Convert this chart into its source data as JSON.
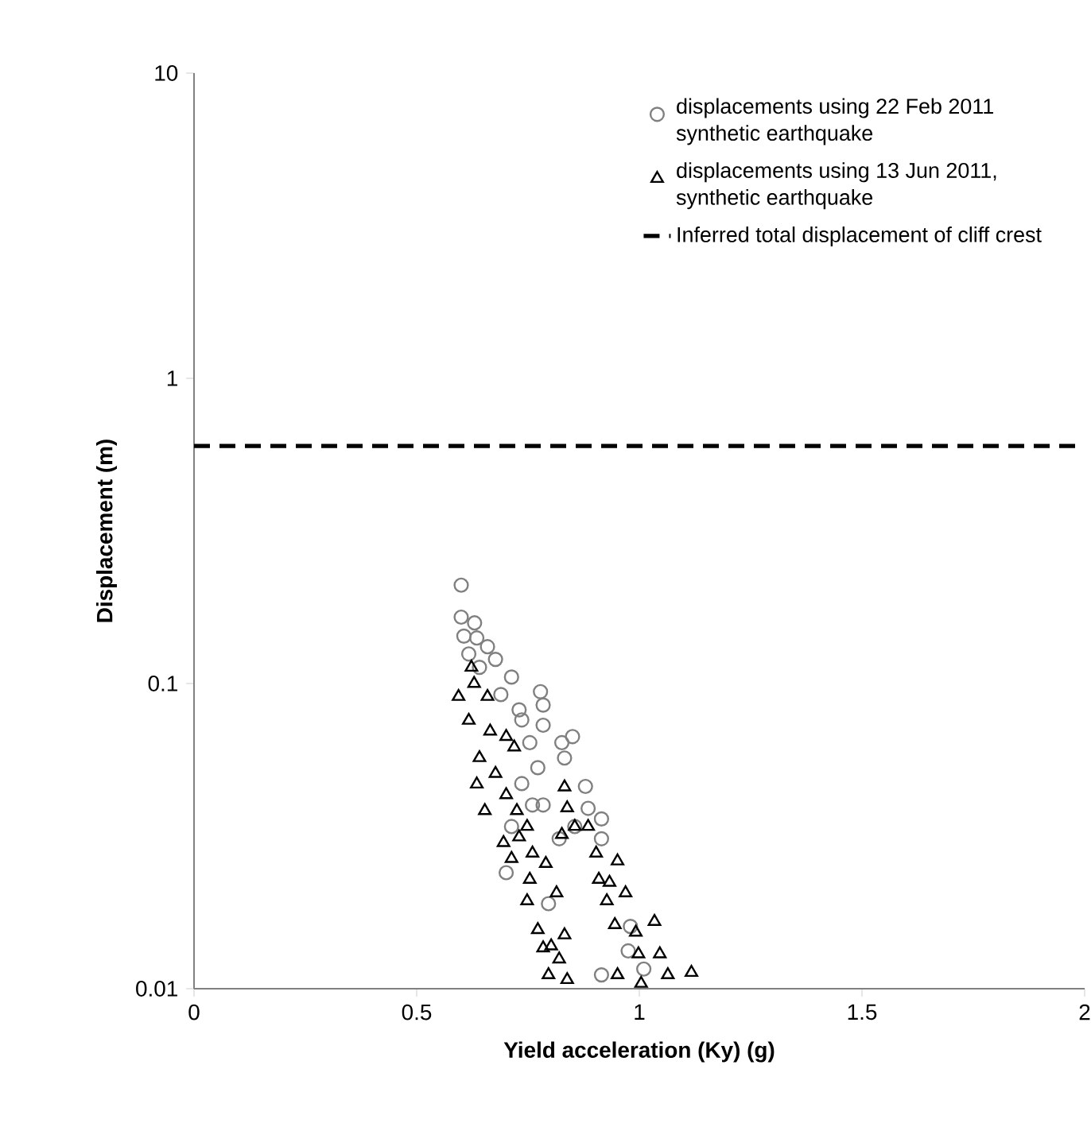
{
  "chart_data": {
    "type": "scatter",
    "xlabel": "Yield acceleration (Ky) (g)",
    "ylabel": "Displacement (m)",
    "xlim": [
      0,
      2
    ],
    "xticks": [
      0,
      0.5,
      1,
      1.5,
      2
    ],
    "ylim": [
      0.01,
      10
    ],
    "yticks": [
      0.01,
      0.1,
      1,
      10
    ],
    "log": "y",
    "legend": "top right",
    "series": [
      {
        "name": "displacements using 22 Feb 2011 synthetic earthquake",
        "color": "#808080",
        "marker": "circle",
        "x": [
          0.6,
          0.6,
          0.63,
          0.606,
          0.659,
          0.617,
          0.677,
          0.713,
          0.641,
          0.778,
          0.784,
          0.736,
          0.784,
          0.85,
          0.826,
          0.754,
          0.832,
          0.772,
          0.736,
          0.879,
          0.784,
          0.885,
          0.915,
          0.855,
          0.915,
          0.713,
          0.701,
          0.796,
          0.98,
          0.975,
          0.915,
          1.01,
          0.82,
          0.76,
          0.689,
          0.73,
          0.635
        ],
        "values": [
          0.21,
          0.165,
          0.158,
          0.143,
          0.132,
          0.125,
          0.12,
          0.105,
          0.113,
          0.094,
          0.085,
          0.076,
          0.073,
          0.067,
          0.064,
          0.064,
          0.057,
          0.053,
          0.047,
          0.046,
          0.04,
          0.039,
          0.036,
          0.034,
          0.031,
          0.034,
          0.024,
          0.019,
          0.016,
          0.0133,
          0.0111,
          0.0116,
          0.031,
          0.04,
          0.092,
          0.082,
          0.141
        ]
      },
      {
        "name": "displacements using 13 Jun 2011, synthetic earthquake",
        "color": "#000000",
        "marker": "triangle",
        "x": [
          0.623,
          0.594,
          0.659,
          0.617,
          0.701,
          0.719,
          0.641,
          0.677,
          0.635,
          0.701,
          0.653,
          0.725,
          0.748,
          0.695,
          0.76,
          0.713,
          0.79,
          0.754,
          0.814,
          0.748,
          0.832,
          0.838,
          0.855,
          0.826,
          0.885,
          0.903,
          0.951,
          0.909,
          0.933,
          0.969,
          0.927,
          0.945,
          1.034,
          0.992,
          0.772,
          0.832,
          0.802,
          0.784,
          1.046,
          0.998,
          0.82,
          0.796,
          0.838,
          0.951,
          1.004,
          1.064,
          1.117,
          0.629,
          0.665,
          0.73
        ],
        "values": [
          0.113,
          0.0906,
          0.0906,
          0.0757,
          0.067,
          0.0619,
          0.0571,
          0.0507,
          0.0468,
          0.0432,
          0.0383,
          0.0383,
          0.034,
          0.0301,
          0.0278,
          0.0267,
          0.0257,
          0.0228,
          0.0206,
          0.0194,
          0.0458,
          0.0391,
          0.034,
          0.032,
          0.034,
          0.0278,
          0.0262,
          0.0228,
          0.0223,
          0.0206,
          0.0194,
          0.0162,
          0.0166,
          0.0153,
          0.0156,
          0.015,
          0.0138,
          0.0136,
          0.013,
          0.013,
          0.0125,
          0.0111,
          0.0107,
          0.0111,
          0.0104,
          0.0111,
          0.0113,
          0.1,
          0.0698,
          0.0314
        ]
      }
    ],
    "ref_lines": [
      {
        "axis": "y",
        "value": 0.6,
        "label": "Inferred total displacement of cliff crest",
        "color": "#000000",
        "line_style": "dashed"
      }
    ]
  }
}
